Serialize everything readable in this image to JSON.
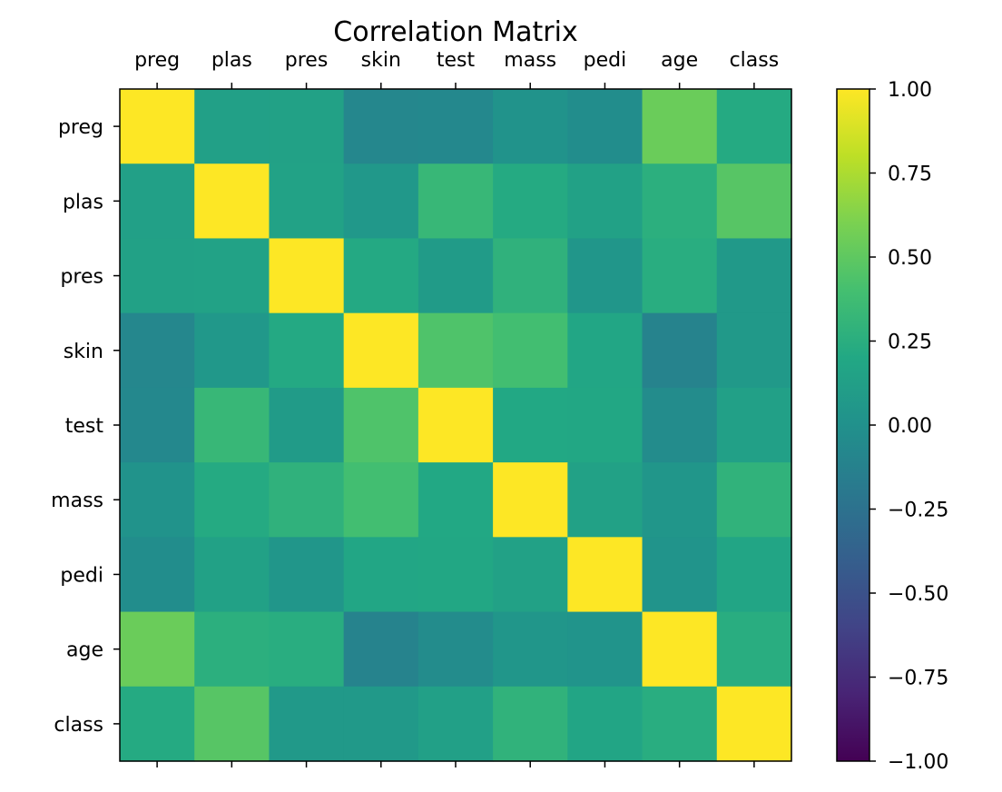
{
  "chart_data": {
    "type": "heatmap",
    "title": "Correlation Matrix",
    "categories": [
      "preg",
      "plas",
      "pres",
      "skin",
      "test",
      "mass",
      "pedi",
      "age",
      "class"
    ],
    "matrix": [
      [
        1.0,
        0.13,
        0.14,
        -0.08,
        -0.07,
        0.02,
        -0.03,
        0.54,
        0.22
      ],
      [
        0.13,
        1.0,
        0.15,
        0.06,
        0.33,
        0.22,
        0.14,
        0.26,
        0.47
      ],
      [
        0.14,
        0.15,
        1.0,
        0.21,
        0.09,
        0.28,
        0.04,
        0.24,
        0.07
      ],
      [
        -0.08,
        0.06,
        0.21,
        1.0,
        0.44,
        0.39,
        0.18,
        -0.11,
        0.07
      ],
      [
        -0.07,
        0.33,
        0.09,
        0.44,
        1.0,
        0.2,
        0.19,
        -0.04,
        0.13
      ],
      [
        0.02,
        0.22,
        0.28,
        0.39,
        0.2,
        1.0,
        0.14,
        0.04,
        0.29
      ],
      [
        -0.03,
        0.14,
        0.04,
        0.18,
        0.19,
        0.14,
        1.0,
        0.03,
        0.17
      ],
      [
        0.54,
        0.26,
        0.24,
        -0.11,
        -0.04,
        0.04,
        0.03,
        1.0,
        0.24
      ],
      [
        0.22,
        0.47,
        0.07,
        0.07,
        0.13,
        0.29,
        0.17,
        0.24,
        1.0
      ]
    ],
    "vmin": -1.0,
    "vmax": 1.0,
    "colormap": "viridis",
    "colorbar_ticks": [
      1.0,
      0.75,
      0.5,
      0.25,
      0.0,
      -0.25,
      -0.5,
      -0.75,
      -1.0
    ],
    "colorbar_tick_labels": [
      "1.00",
      "0.75",
      "0.50",
      "0.25",
      "0.00",
      "−0.25",
      "−0.50",
      "−0.75",
      "−1.00"
    ],
    "xlabel": "",
    "ylabel": "",
    "grid": false,
    "legend": "colorbar-right"
  }
}
